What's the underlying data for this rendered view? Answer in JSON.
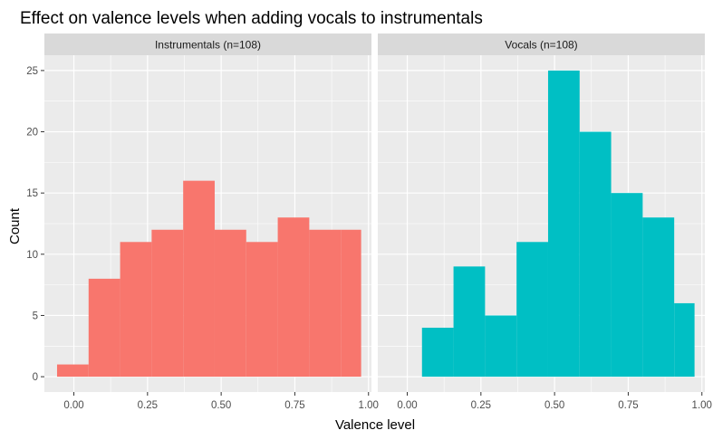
{
  "chart_data": {
    "type": "histogram",
    "title": "Effect on valence levels when adding vocals to instrumentals",
    "xlabel": "Valence level",
    "ylabel": "Count",
    "xlim": [
      -0.1,
      1.01
    ],
    "ylim": [
      -1.25,
      26.25
    ],
    "x_ticks": [
      0,
      0.25,
      0.5,
      0.75,
      1
    ],
    "x_tick_labels": [
      "0.00",
      "0.25",
      "0.50",
      "0.75",
      "1.00"
    ],
    "y_ticks": [
      0,
      5,
      10,
      15,
      20,
      25
    ],
    "y_tick_labels": [
      "0",
      "5",
      "10",
      "15",
      "20",
      "25"
    ],
    "grid": true,
    "legend": "none",
    "bin_width": 0.107,
    "panels": [
      {
        "strip_label": "Instrumentals (n=108)",
        "color": "#F8766D",
        "bins": [
          {
            "x0": -0.057,
            "x1": 0.05,
            "count": 1
          },
          {
            "x0": 0.05,
            "x1": 0.157,
            "count": 8
          },
          {
            "x0": 0.157,
            "x1": 0.264,
            "count": 11
          },
          {
            "x0": 0.264,
            "x1": 0.371,
            "count": 12
          },
          {
            "x0": 0.371,
            "x1": 0.478,
            "count": 16
          },
          {
            "x0": 0.478,
            "x1": 0.585,
            "count": 12
          },
          {
            "x0": 0.585,
            "x1": 0.692,
            "count": 11
          },
          {
            "x0": 0.692,
            "x1": 0.799,
            "count": 13
          },
          {
            "x0": 0.799,
            "x1": 0.906,
            "count": 12
          },
          {
            "x0": 0.906,
            "x1": 0.975,
            "count": 12
          }
        ]
      },
      {
        "strip_label": "Vocals (n=108)",
        "color": "#00BFC4",
        "bins": [
          {
            "x0": 0.05,
            "x1": 0.157,
            "count": 4
          },
          {
            "x0": 0.157,
            "x1": 0.264,
            "count": 9
          },
          {
            "x0": 0.264,
            "x1": 0.371,
            "count": 5
          },
          {
            "x0": 0.371,
            "x1": 0.478,
            "count": 11
          },
          {
            "x0": 0.478,
            "x1": 0.585,
            "count": 25
          },
          {
            "x0": 0.585,
            "x1": 0.692,
            "count": 20
          },
          {
            "x0": 0.692,
            "x1": 0.799,
            "count": 15
          },
          {
            "x0": 0.799,
            "x1": 0.906,
            "count": 13
          },
          {
            "x0": 0.906,
            "x1": 0.975,
            "count": 6
          }
        ]
      }
    ]
  }
}
